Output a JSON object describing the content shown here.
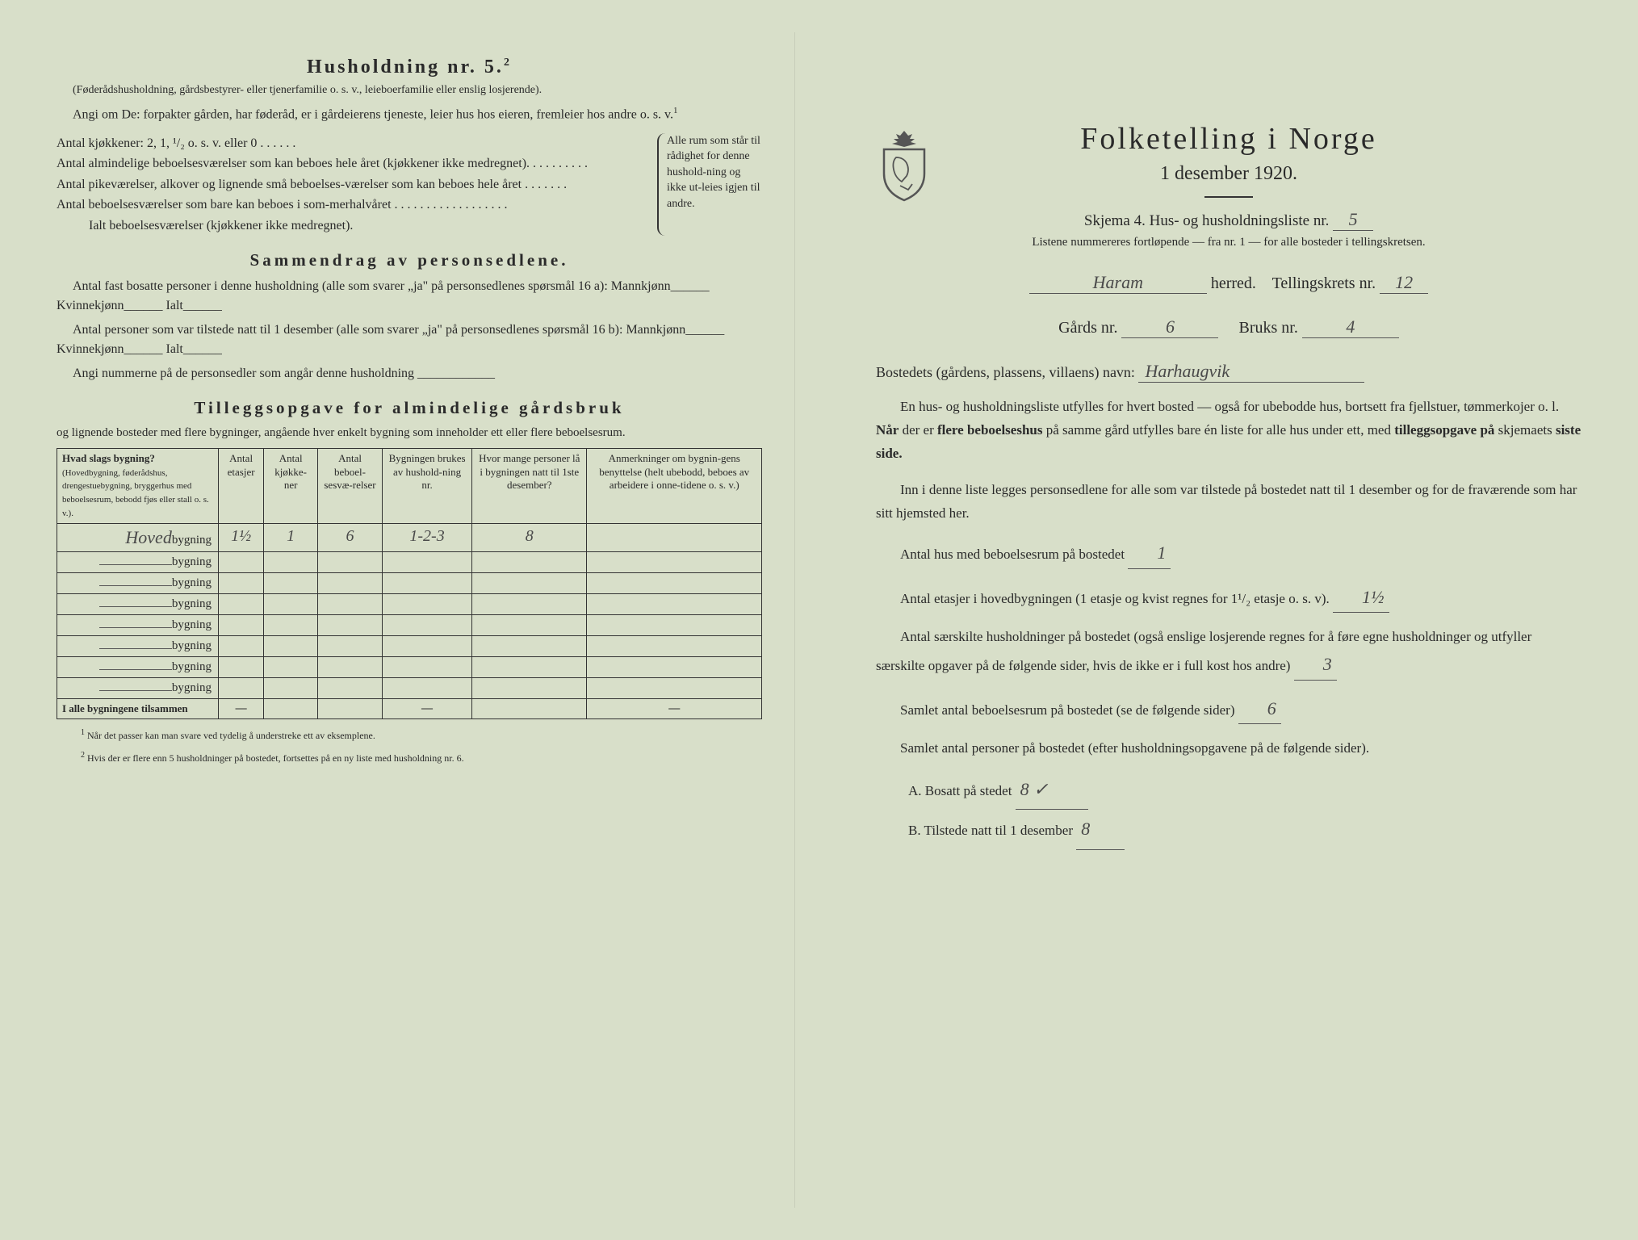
{
  "left": {
    "household_title": "Husholdning nr. 5.",
    "household_sup": "2",
    "household_note": "(Føderådshusholdning, gårdsbestyrer- eller tjenerfamilie o. s. v., leieboerfamilie eller enslig losjerende).",
    "household_para": "Angi om De: forpakter gården, har føderåd, er i gårdeierens tjeneste, leier hus hos eieren, fremleier hos andre o. s. v.",
    "kitchens_line": "Antal kjøkkener: 2, 1, ¹/₂ o. s. v. eller 0 . . . . . .",
    "rooms1": "Antal almindelige beboelsesværelser som kan beboes hele året (kjøkkener ikke medregnet). . . . . . . . . .",
    "rooms2": "Antal pikeværelser, alkover og lignende små beboelses-værelser som kan beboes hele året . . . . . . .",
    "rooms3": "Antal beboelsesværelser som bare kan beboes i som-merhalvåret . . . . . . . . . . . . . . . . . .",
    "rooms_total": "Ialt beboelsesværelser (kjøkkener ikke medregnet).",
    "brace_text": "Alle rum som står til rådighet for denne hushold-ning og ikke ut-leies igjen til andre.",
    "summary_title": "Sammendrag av personsedlene.",
    "summary_p1": "Antal fast bosatte personer i denne husholdning (alle som svarer „ja\" på personsedlenes spørsmål 16 a): Mannkjønn______ Kvinnekjønn______ Ialt______",
    "summary_p2": "Antal personer som var tilstede natt til 1 desember (alle som svarer „ja\" på personsedlenes spørsmål 16 b): Mannkjønn______ Kvinnekjønn______ Ialt______",
    "summary_p3": "Angi nummerne på de personsedler som angår denne husholdning ____________",
    "tillegg_title": "Tilleggsopgave for almindelige gårdsbruk",
    "tillegg_note": "og lignende bosteder med flere bygninger, angående hver enkelt bygning som inneholder ett eller flere beboelsesrum.",
    "table": {
      "headers": [
        "Hvad slags bygning?",
        "Antal etasjer",
        "Antal kjøkke-ner",
        "Antal beboel-sesvæ-relser",
        "Bygningen brukes av hushold-ning nr.",
        "Hvor mange personer lå i bygningen natt til 1ste desember?",
        "Anmerkninger om bygnin-gens benyttelse (helt ubebodd, beboes av arbeidere i onne-tidene o. s. v.)"
      ],
      "header_sub": "(Hovedbygning, føderådshus, drengestuebygning, bryggerhus med beboelsesrum, bebodd fjøs eller stall o. s. v.).",
      "rows": [
        {
          "label": "Hoved",
          "suffix": "bygning",
          "etasjer": "1½",
          "kjokken": "1",
          "beboelse": "6",
          "hushold": "1-2-3",
          "personer": "8",
          "anm": ""
        },
        {
          "label": "",
          "suffix": "bygning",
          "etasjer": "",
          "kjokken": "",
          "beboelse": "",
          "hushold": "",
          "personer": "",
          "anm": ""
        },
        {
          "label": "",
          "suffix": "bygning",
          "etasjer": "",
          "kjokken": "",
          "beboelse": "",
          "hushold": "",
          "personer": "",
          "anm": ""
        },
        {
          "label": "",
          "suffix": "bygning",
          "etasjer": "",
          "kjokken": "",
          "beboelse": "",
          "hushold": "",
          "personer": "",
          "anm": ""
        },
        {
          "label": "",
          "suffix": "bygning",
          "etasjer": "",
          "kjokken": "",
          "beboelse": "",
          "hushold": "",
          "personer": "",
          "anm": ""
        },
        {
          "label": "",
          "suffix": "bygning",
          "etasjer": "",
          "kjokken": "",
          "beboelse": "",
          "hushold": "",
          "personer": "",
          "anm": ""
        },
        {
          "label": "",
          "suffix": "bygning",
          "etasjer": "",
          "kjokken": "",
          "beboelse": "",
          "hushold": "",
          "personer": "",
          "anm": ""
        },
        {
          "label": "",
          "suffix": "bygning",
          "etasjer": "",
          "kjokken": "",
          "beboelse": "",
          "hushold": "",
          "personer": "",
          "anm": ""
        }
      ],
      "totals_label": "I alle bygningene tilsammen",
      "dash": "—"
    },
    "footer1": "Når det passer kan man svare ved tydelig å understreke ett av eksemplene.",
    "footer2": "Hvis der er flere enn 5 husholdninger på bostedet, fortsettes på en ny liste med husholdning nr. 6."
  },
  "right": {
    "main_title": "Folketelling i Norge",
    "main_date": "1 desember 1920.",
    "skjema_label": "Skjema 4.  Hus- og husholdningsliste nr.",
    "skjema_nr": "5",
    "sub_line": "Listene nummereres fortløpende — fra nr. 1 — for alle bosteder i tellingskretsen.",
    "herred": "Haram",
    "herred_label": "herred.",
    "krets_label": "Tellingskrets nr.",
    "krets_nr": "12",
    "gards_label": "Gårds nr.",
    "gards_nr": "6",
    "bruks_label": "Bruks nr.",
    "bruks_nr": "4",
    "bosted_label": "Bostedets (gårdens, plassens, villaens) navn:",
    "bosted_name": "Harhaugvik",
    "body1": "En hus- og husholdningsliste utfylles for hvert bosted — også for ubebodde hus, bortsett fra fjellstuer, tømmerkojer o. l.  Når der er flere beboelseshus på samme gård utfylles bare én liste for alle hus under ett, med tilleggsopgave på skjemaets siste side.",
    "body2": "Inn i denne liste legges personsedlene for alle som var tilstede på bostedet natt til 1 desember og for de fraværende som har sitt hjemsted her.",
    "q1_label": "Antal hus med beboelsesrum på bostedet",
    "q1_ans": "1",
    "q2_label": "Antal etasjer i hovedbygningen (1 etasje og kvist regnes for 1¹/₂ etasje o. s. v).",
    "q2_ans": "1½",
    "q3_label": "Antal særskilte husholdninger på bostedet (også enslige losjerende regnes for å føre egne husholdninger og utfyller særskilte opgaver på de følgende sider, hvis de ikke er i full kost hos andre)",
    "q3_ans": "3",
    "q4_label": "Samlet antal beboelsesrum på bostedet (se de følgende sider)",
    "q4_ans": "6",
    "q5_label": "Samlet antal personer på bostedet (efter husholdningsopgavene på de følgende sider).",
    "qa_label": "A.  Bosatt på stedet",
    "qa_ans": "8 ✓",
    "qb_label": "B.  Tilstede natt til 1 desember",
    "qb_ans": "8"
  },
  "colors": {
    "background": "#d8dfc9",
    "text": "#2a2a2a",
    "handwriting": "#4a4a4a",
    "border": "#333333"
  }
}
